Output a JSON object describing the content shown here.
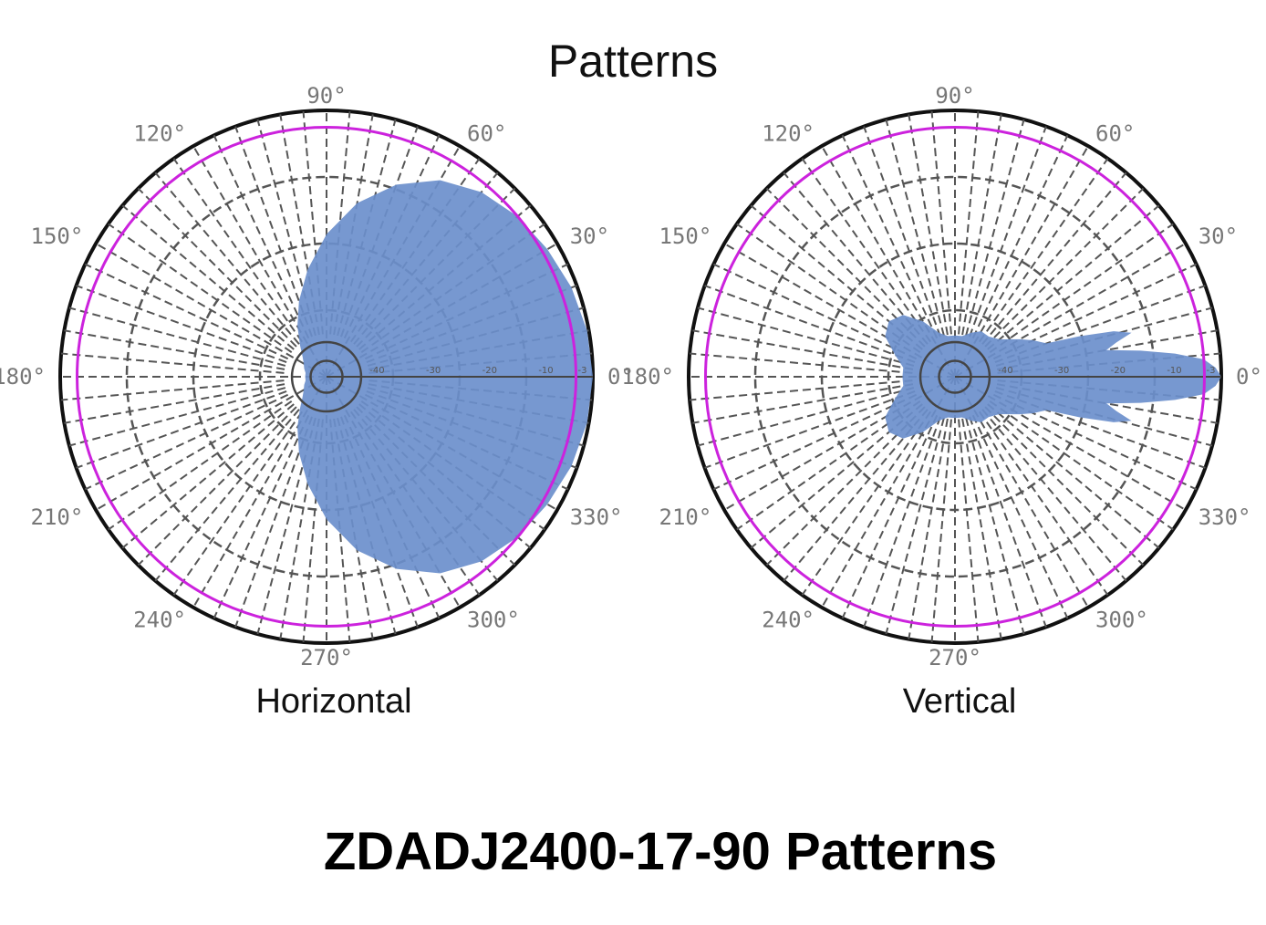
{
  "title": "Patterns",
  "footer": "ZDADJ2400-17-90 Patterns",
  "colors": {
    "pattern_fill": "#6b8fcc",
    "reference_ring": "#cc22dd",
    "grid": "#555555",
    "outer": "#111111"
  },
  "chart_data": [
    {
      "type": "polar",
      "caption": "Horizontal",
      "angle_labels": [
        "0°",
        "30°",
        "60°",
        "90°",
        "120°",
        "150°",
        "180°",
        "210°",
        "240°",
        "270°",
        "300°",
        "330°"
      ],
      "ring_labels": [
        "-40",
        "-30",
        "-20",
        "-10",
        "-3"
      ],
      "pattern": {
        "angle_deg": [
          0,
          10,
          20,
          30,
          40,
          50,
          60,
          70,
          80,
          90,
          100,
          110,
          120,
          130,
          140,
          150,
          160,
          170,
          180,
          190,
          200,
          210,
          220,
          230,
          240,
          250,
          260,
          270,
          280,
          290,
          300,
          310,
          320,
          330,
          340,
          350
        ],
        "gain_db": [
          0,
          -0.3,
          -1,
          -2,
          -3,
          -4.5,
          -7,
          -11,
          -16,
          -22,
          -28,
          -33,
          -37,
          -40,
          -42,
          -43,
          -43.5,
          -44,
          -44,
          -44,
          -43.5,
          -43,
          -42,
          -40,
          -37,
          -33,
          -28,
          -22,
          -16,
          -11,
          -7,
          -4.5,
          -3,
          -2,
          -1,
          -0.3
        ]
      }
    },
    {
      "type": "polar",
      "caption": "Vertical",
      "angle_labels": [
        "0°",
        "30°",
        "60°",
        "90°",
        "120°",
        "150°",
        "180°",
        "210°",
        "240°",
        "270°",
        "300°",
        "330°"
      ],
      "ring_labels": [
        "-40",
        "-30",
        "-20",
        "-10",
        "-3"
      ],
      "pattern": {
        "angle_deg": [
          0,
          2,
          4,
          6,
          8,
          10,
          12,
          14,
          16,
          18,
          20,
          25,
          30,
          40,
          50,
          60,
          70,
          80,
          90,
          100,
          110,
          120,
          130,
          140,
          150,
          160,
          170,
          180,
          190,
          200,
          210,
          220,
          230,
          240,
          250,
          260,
          270,
          280,
          290,
          300,
          310,
          320,
          330,
          335,
          340,
          342,
          344,
          346,
          348,
          350,
          352,
          354,
          356,
          358
        ],
        "gain_db": [
          0,
          -1,
          -3,
          -8,
          -14,
          -20,
          -18,
          -15,
          -18,
          -24,
          -30,
          -32,
          -34,
          -37,
          -38,
          -38,
          -39,
          -40,
          -40,
          -40,
          -39,
          -36,
          -33,
          -32,
          -33,
          -36,
          -38,
          -38,
          -38,
          -36,
          -33,
          -32,
          -33,
          -36,
          -39,
          -40,
          -40,
          -40,
          -39,
          -38,
          -38,
          -37,
          -34,
          -32,
          -30,
          -24,
          -18,
          -15,
          -18,
          -20,
          -14,
          -8,
          -3,
          -1
        ]
      }
    }
  ]
}
